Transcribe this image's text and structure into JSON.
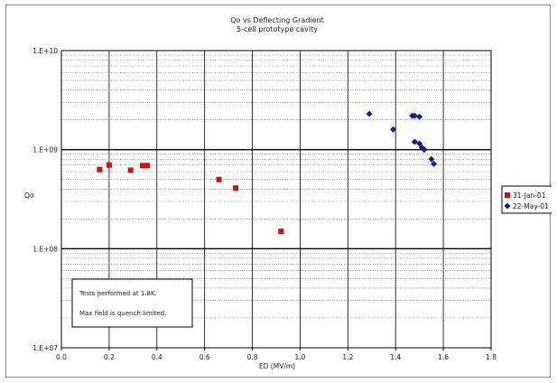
{
  "chart_data": {
    "type": "scatter",
    "title": "Qo vs Deflecting Gradient",
    "subtitle": "5-cell prototype cavity",
    "xlabel": "ED (MV/m)",
    "ylabel": "Qo",
    "xlim": [
      0.0,
      1.8
    ],
    "ylim": [
      10000000,
      10000000000
    ],
    "yscale": "log",
    "x_ticks": [
      "0.0",
      "0.2",
      "0.4",
      "0.6",
      "0.8",
      "1.0",
      "1.2",
      "1.4",
      "1.6",
      "1.8"
    ],
    "y_ticks": [
      "1.E+07",
      "1.E+08",
      "1.E+09",
      "1.E+10"
    ],
    "grid": true,
    "legend_position": "right",
    "series": [
      {
        "name": "31-Jan-01",
        "color": "#cc1111",
        "marker": "square",
        "points": [
          {
            "x": 0.16,
            "y": 630000000
          },
          {
            "x": 0.2,
            "y": 700000000
          },
          {
            "x": 0.29,
            "y": 620000000
          },
          {
            "x": 0.34,
            "y": 690000000
          },
          {
            "x": 0.36,
            "y": 690000000
          },
          {
            "x": 0.66,
            "y": 500000000
          },
          {
            "x": 0.73,
            "y": 410000000
          },
          {
            "x": 0.92,
            "y": 150000000
          }
        ]
      },
      {
        "name": "22-May-01",
        "color": "#1a1a8c",
        "marker": "diamond",
        "points": [
          {
            "x": 1.29,
            "y": 2300000000
          },
          {
            "x": 1.39,
            "y": 1600000000
          },
          {
            "x": 1.47,
            "y": 2200000000
          },
          {
            "x": 1.48,
            "y": 2200000000
          },
          {
            "x": 1.5,
            "y": 2150000000
          },
          {
            "x": 1.48,
            "y": 1200000000
          },
          {
            "x": 1.5,
            "y": 1150000000
          },
          {
            "x": 1.51,
            "y": 1050000000
          },
          {
            "x": 1.52,
            "y": 1000000000
          },
          {
            "x": 1.55,
            "y": 800000000
          },
          {
            "x": 1.56,
            "y": 720000000
          }
        ]
      }
    ],
    "annotation": {
      "line1": "Tests performed at 1.8K.",
      "line2": "Max field is quench limited."
    }
  }
}
